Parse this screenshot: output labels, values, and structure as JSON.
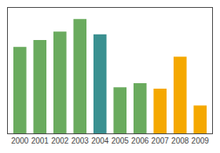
{
  "chart_data": {
    "type": "bar",
    "categories": [
      "2000",
      "2001",
      "2002",
      "2003",
      "2004",
      "2005",
      "2006",
      "2007",
      "2008",
      "2009"
    ],
    "values": [
      62,
      67,
      73,
      82,
      71,
      33,
      36,
      32,
      55,
      20
    ],
    "colors": [
      "#6aab5e",
      "#6aab5e",
      "#6aab5e",
      "#6aab5e",
      "#3a9090",
      "#6aab5e",
      "#6aab5e",
      "#f5a800",
      "#f5a800",
      "#f5a800"
    ],
    "ylim": [
      0,
      90
    ],
    "grid": false,
    "tick_labels": "x"
  }
}
